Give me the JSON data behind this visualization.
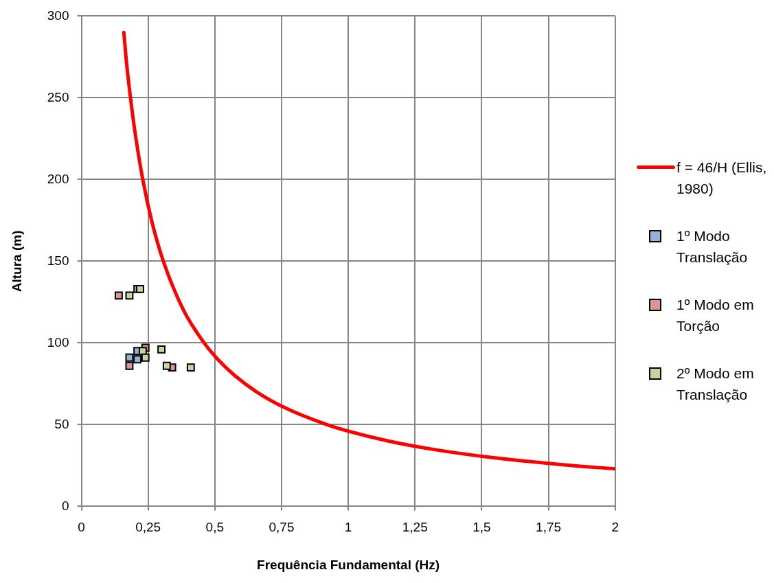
{
  "chart_data": {
    "type": "scatter",
    "xlabel": "Frequência Fundamental (Hz)",
    "ylabel": "Altura (m)",
    "xlim": [
      0,
      2
    ],
    "xticks": [
      0,
      {
        "value": 0.25,
        "label": "0,25"
      },
      {
        "value": 0.5,
        "label": "0,5"
      },
      {
        "value": 0.75,
        "label": "0,75"
      },
      1,
      {
        "value": 1.25,
        "label": "1,25"
      },
      {
        "value": 1.5,
        "label": "1,5"
      },
      {
        "value": 1.75,
        "label": "1,75"
      },
      2
    ],
    "ylim": [
      0,
      300
    ],
    "yticks": [
      0,
      50,
      100,
      150,
      200,
      250,
      300
    ],
    "grid": true,
    "legend": "right",
    "marker": "square",
    "series": [
      {
        "name": "f = 46/H (Ellis, 1980)",
        "type": "line",
        "marker": "none",
        "color": "#ff0000",
        "x": [
          0.159,
          0.17,
          0.184,
          0.2,
          0.23,
          0.263,
          0.307,
          0.383,
          0.46,
          0.511,
          0.575,
          0.657,
          0.767,
          0.92,
          1,
          1.15,
          1.314,
          1.533,
          1.84,
          2
        ],
        "values": [
          290,
          270,
          250,
          230,
          200,
          175,
          150,
          120,
          100,
          90,
          80,
          70,
          60,
          50,
          46,
          40,
          35,
          30,
          25,
          23
        ]
      },
      {
        "name": "1º Modo Translação",
        "color": "#95b3d7",
        "x": [
          0.18,
          0.21,
          0.21
        ],
        "values": [
          91,
          95,
          90
        ]
      },
      {
        "name": "1º Modo em Torção",
        "color": "#d99694",
        "x": [
          0.14,
          0.21,
          0.18,
          0.24,
          0.34
        ],
        "values": [
          129,
          133,
          86,
          97,
          85
        ]
      },
      {
        "name": "2º Modo em Translação",
        "color": "#c3d69b",
        "x": [
          0.18,
          0.22,
          0.23,
          0.24,
          0.3,
          0.32,
          0.41
        ],
        "values": [
          129,
          133,
          95,
          91,
          96,
          86,
          85
        ]
      }
    ]
  }
}
